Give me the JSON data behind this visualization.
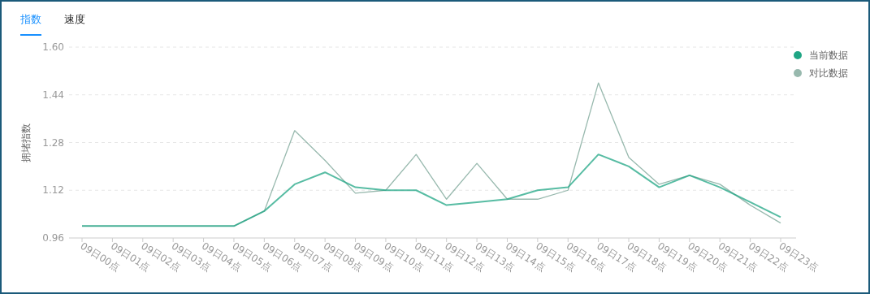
{
  "chart_data": {
    "type": "line",
    "annotations": [
      "指数",
      "速度"
    ],
    "ylabel": "拥堵指数",
    "categories": [
      "09日00点",
      "09日01点",
      "09日02点",
      "09日03点",
      "09日04点",
      "09日05点",
      "09日06点",
      "09日07点",
      "09日08点",
      "09日09点",
      "09日10点",
      "09日11点",
      "09日12点",
      "09日13点",
      "09日14点",
      "09日15点",
      "09日16点",
      "09日17点",
      "09日18点",
      "09日19点",
      "09日20点",
      "09日21点",
      "09日22点",
      "09日23点"
    ],
    "series": [
      {
        "name": "当前数据",
        "color": "#1fa584",
        "values": [
          1.0,
          1.0,
          1.0,
          1.0,
          1.0,
          1.0,
          1.05,
          1.14,
          1.18,
          1.13,
          1.12,
          1.12,
          1.07,
          1.08,
          1.09,
          1.12,
          1.13,
          1.24,
          1.2,
          1.13,
          1.17,
          1.13,
          1.08,
          1.03
        ]
      },
      {
        "name": "对比数据",
        "color": "#98b9ae",
        "values": [
          1.0,
          1.0,
          1.0,
          1.0,
          1.0,
          1.0,
          1.05,
          1.32,
          1.22,
          1.11,
          1.12,
          1.24,
          1.09,
          1.21,
          1.09,
          1.09,
          1.12,
          1.48,
          1.23,
          1.14,
          1.17,
          1.14,
          1.07,
          1.01
        ]
      }
    ],
    "ylim": [
      0.96,
      1.6
    ],
    "yticks": [
      {
        "value": 0.96,
        "label": "0.96"
      },
      {
        "value": 1.12,
        "label": "1.12"
      },
      {
        "value": 1.28,
        "label": "1.28"
      },
      {
        "value": 1.44,
        "label": "1.44"
      },
      {
        "value": 1.6,
        "label": "1.60"
      }
    ],
    "grid": "y",
    "legend": "top right"
  }
}
